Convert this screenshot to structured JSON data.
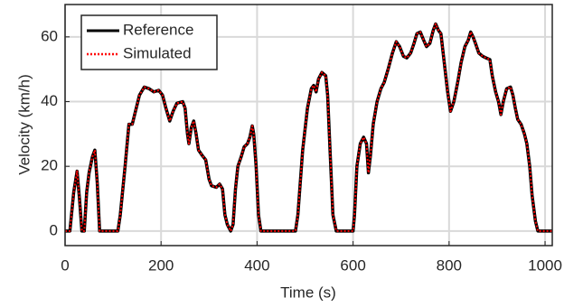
{
  "chart_data": {
    "type": "line",
    "xlabel": "Time (s)",
    "ylabel": "Velocity (km/h)",
    "x": [
      0,
      10,
      18,
      25,
      30,
      35,
      40,
      45,
      50,
      57,
      62,
      67,
      72,
      100,
      110,
      115,
      125,
      133,
      140,
      145,
      155,
      165,
      175,
      185,
      195,
      203,
      210,
      218,
      225,
      233,
      245,
      250,
      255,
      258,
      263,
      268,
      273,
      278,
      285,
      293,
      300,
      305,
      315,
      322,
      328,
      333,
      338,
      345,
      350,
      355,
      360,
      367,
      373,
      380,
      385,
      390,
      393,
      398,
      403,
      408,
      480,
      485,
      495,
      505,
      513,
      518,
      523,
      528,
      535,
      543,
      547,
      552,
      558,
      565,
      600,
      603,
      608,
      615,
      622,
      628,
      632,
      636,
      642,
      650,
      658,
      665,
      673,
      682,
      690,
      697,
      705,
      712,
      720,
      727,
      733,
      740,
      747,
      753,
      760,
      767,
      772,
      778,
      783,
      790,
      797,
      803,
      810,
      818,
      825,
      833,
      840,
      845,
      850,
      855,
      862,
      870,
      877,
      885,
      890,
      897,
      903,
      908,
      913,
      920,
      928,
      933,
      938,
      943,
      950,
      957,
      962,
      968,
      973,
      980,
      985,
      1015
    ],
    "series": [
      {
        "name": "Reference",
        "color": "#000000",
        "style": "solid",
        "values": [
          0,
          0,
          12,
          18.5,
          10,
          0,
          0,
          12,
          18,
          23,
          25,
          15,
          0,
          0,
          0,
          5,
          20,
          33,
          33,
          36,
          42,
          44.5,
          44,
          43,
          43.5,
          42,
          38,
          34,
          37,
          39.5,
          40,
          38,
          30,
          27,
          32,
          34,
          30,
          25,
          23.5,
          22,
          16,
          14,
          13.5,
          14.5,
          13,
          5,
          2,
          0,
          2,
          13,
          20,
          23,
          26,
          27,
          29,
          32.5,
          30,
          20,
          5,
          0,
          0,
          5,
          25,
          38,
          44,
          45,
          43,
          47,
          49,
          48,
          42,
          25,
          5,
          0,
          0,
          5,
          20,
          27,
          29,
          27,
          18,
          23,
          33,
          40,
          44,
          46,
          50,
          55,
          58.5,
          57,
          54,
          53.5,
          55,
          58,
          61,
          61.5,
          59,
          57,
          58,
          62,
          64,
          62,
          61,
          52,
          43,
          37,
          40,
          46,
          52,
          57,
          59,
          61.5,
          60,
          58,
          55,
          54,
          53.5,
          53,
          48,
          43,
          40,
          36,
          40,
          44,
          44.5,
          42,
          38,
          34.5,
          33,
          30,
          27,
          20,
          11,
          3,
          0,
          0
        ]
      },
      {
        "name": "Simulated",
        "color": "#ff0000",
        "style": "dotted",
        "values": [
          0,
          0,
          12,
          18.5,
          10,
          0,
          0,
          12,
          18,
          23,
          25,
          15,
          0,
          0,
          0,
          5,
          20,
          33,
          33,
          36,
          42,
          44.5,
          44,
          43,
          43.5,
          42,
          38,
          34,
          37,
          39.5,
          40,
          38,
          30,
          27,
          32,
          34,
          30,
          25,
          23.5,
          22,
          16,
          14,
          13.5,
          14.5,
          13,
          5,
          2,
          0,
          2,
          13,
          20,
          23,
          26,
          27,
          29,
          32.5,
          30,
          20,
          5,
          0,
          0,
          5,
          25,
          38,
          44,
          45,
          43,
          47,
          49,
          48,
          42,
          25,
          5,
          0,
          0,
          5,
          20,
          27,
          29,
          27,
          18,
          23,
          33,
          40,
          44,
          46,
          50,
          55,
          58.5,
          57,
          54,
          53.5,
          55,
          58,
          61,
          61.5,
          59,
          57,
          58,
          62,
          64,
          62,
          61,
          52,
          43,
          37,
          40,
          46,
          52,
          57,
          59,
          61.5,
          60,
          58,
          55,
          54,
          53.5,
          53,
          48,
          43,
          40,
          36,
          40,
          44,
          44.5,
          42,
          38,
          34.5,
          33,
          30,
          27,
          20,
          11,
          3,
          0,
          0
        ]
      }
    ],
    "xlim": [
      0,
      1015
    ],
    "ylim": [
      -4.5,
      70
    ],
    "xticks": [
      0,
      200,
      400,
      600,
      800,
      1000
    ],
    "yticks": [
      0,
      20,
      40,
      60
    ],
    "grid": true,
    "legend": "top-left"
  }
}
